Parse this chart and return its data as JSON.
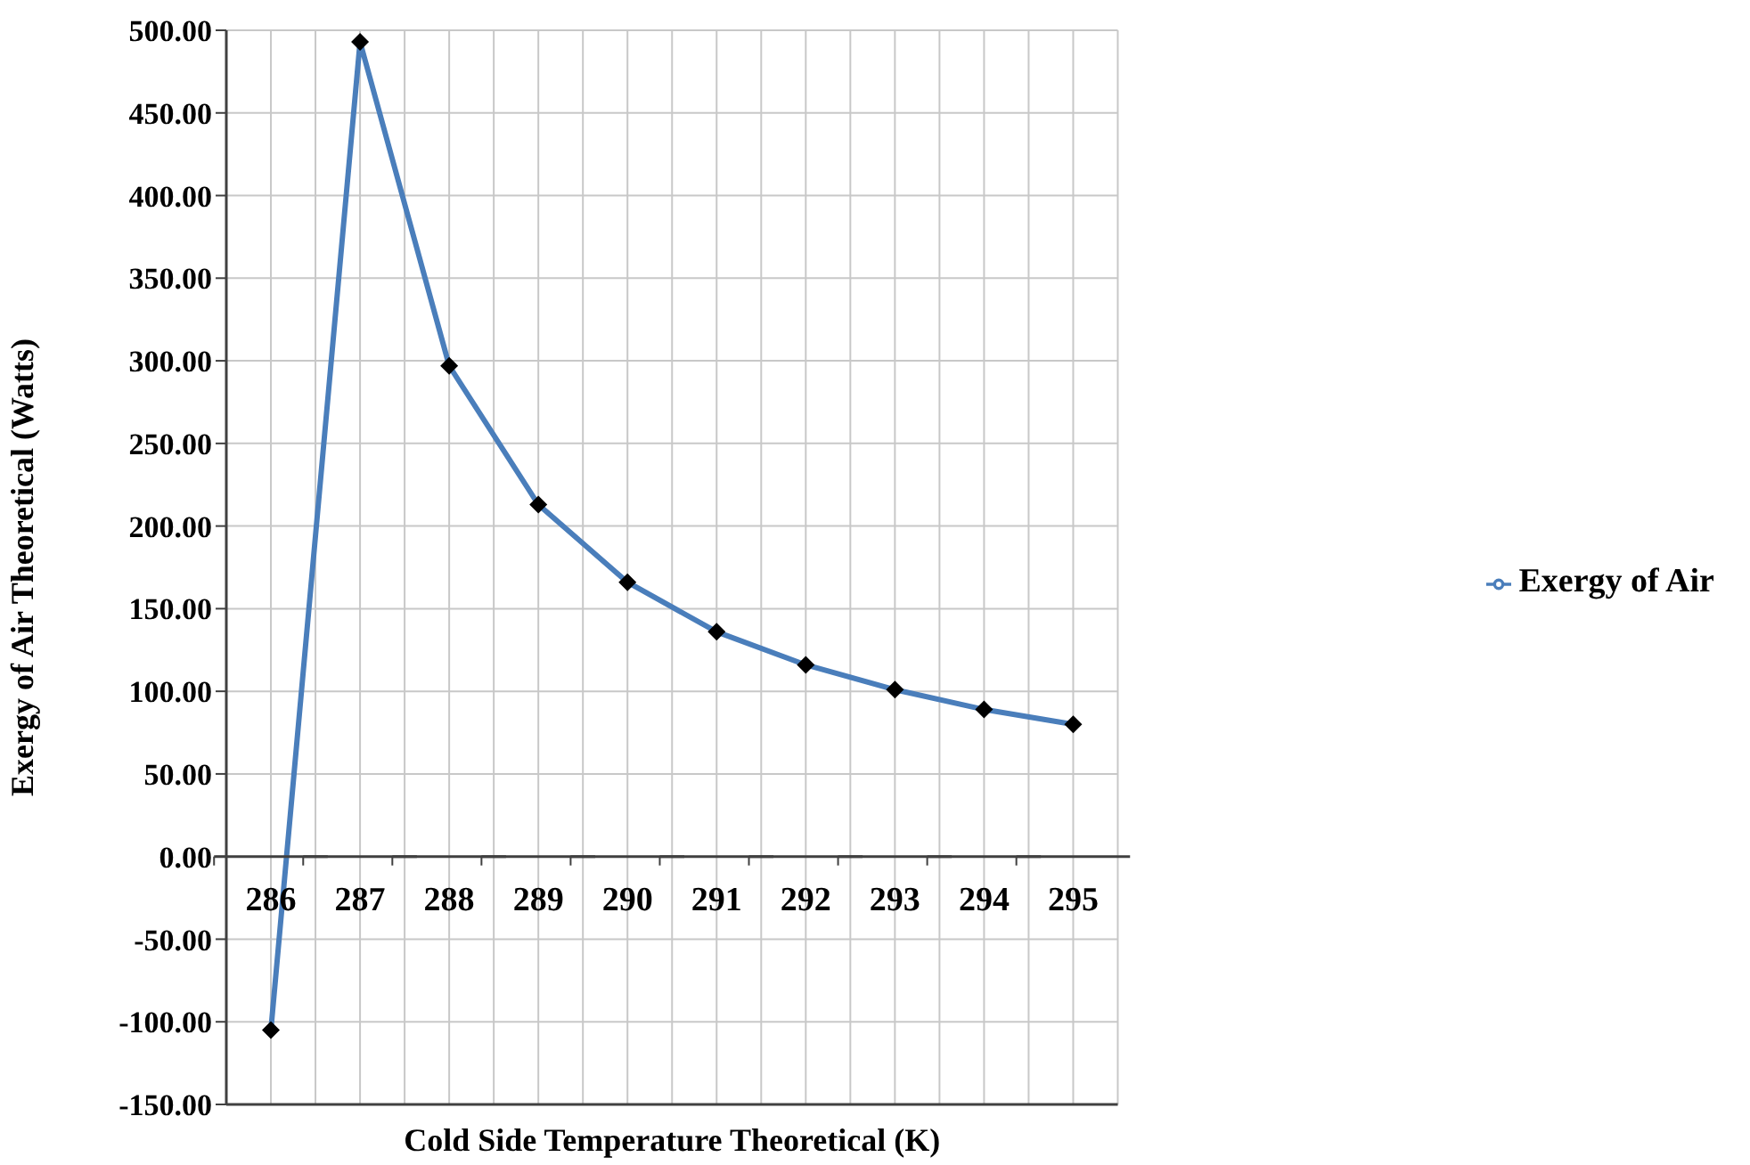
{
  "chart_data": {
    "type": "line",
    "xlabel": "Cold Side Temperature  Theoretical (K)",
    "ylabel": "Exergy of Air Theoretical (Watts)",
    "categories": [
      "286",
      "287",
      "288",
      "289",
      "290",
      "291",
      "292",
      "293",
      "294",
      "295"
    ],
    "series": [
      {
        "name": "Exergy of Air",
        "color": "#4a7ebb",
        "values": [
          -105,
          493,
          297,
          213,
          166,
          136,
          116,
          101,
          89,
          80
        ]
      }
    ],
    "ylim": [
      -150,
      500
    ],
    "yticks": [
      {
        "value": -150,
        "label": "-150.00"
      },
      {
        "value": -100,
        "label": "-100.00"
      },
      {
        "value": -50,
        "label": "-50.00"
      },
      {
        "value": 0,
        "label": "0.00"
      },
      {
        "value": 50,
        "label": "50.00"
      },
      {
        "value": 100,
        "label": "100.00"
      },
      {
        "value": 150,
        "label": "150.00"
      },
      {
        "value": 200,
        "label": "200.00"
      },
      {
        "value": 250,
        "label": "250.00"
      },
      {
        "value": 300,
        "label": "300.00"
      },
      {
        "value": 350,
        "label": "350.00"
      },
      {
        "value": 400,
        "label": "400.00"
      },
      {
        "value": 450,
        "label": "450.00"
      },
      {
        "value": 500,
        "label": "500.00"
      }
    ],
    "grid": true,
    "legend": "right",
    "marker": "diamond",
    "line_style": "solid"
  }
}
